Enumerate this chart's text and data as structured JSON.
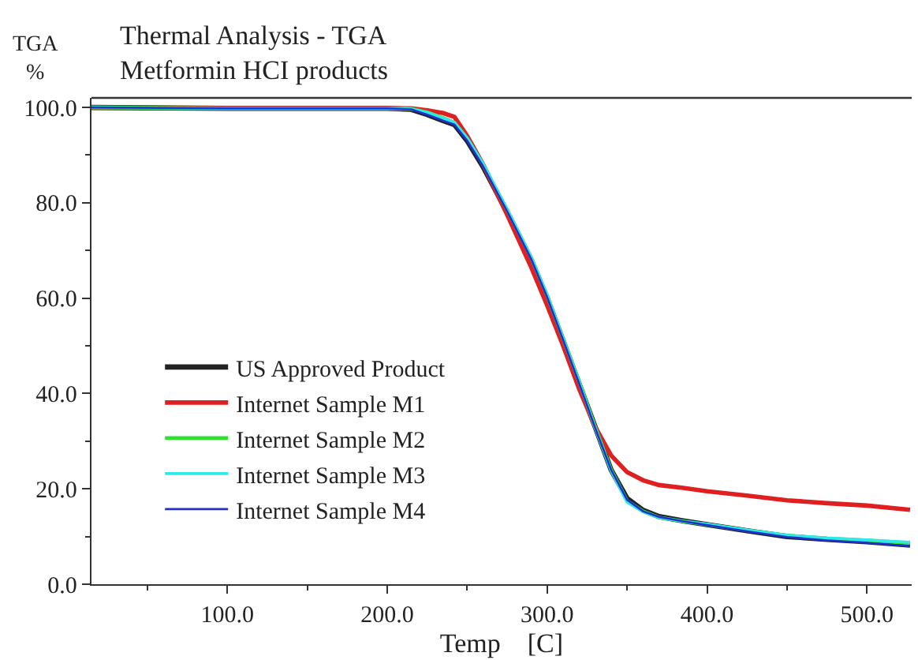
{
  "chart_data": {
    "type": "line",
    "title": "Thermal Analysis - TGA",
    "subtitle": "Metformin HCI products",
    "xlabel": "Temp    [C]",
    "ylabel": "TGA\n%",
    "x": [
      15,
      100,
      200,
      215,
      225,
      235,
      242,
      250,
      260,
      275,
      290,
      300,
      310,
      320,
      330,
      340,
      350,
      360,
      370,
      385,
      400,
      425,
      450,
      475,
      500,
      527
    ],
    "xlim": [
      15,
      528
    ],
    "ylim": [
      0,
      102
    ],
    "xticks": [
      {
        "value": 100,
        "label": "100.0"
      },
      {
        "value": 200,
        "label": "200.0"
      },
      {
        "value": 300,
        "label": "300.0"
      },
      {
        "value": 400,
        "label": "400.0"
      },
      {
        "value": 500,
        "label": "500.0"
      }
    ],
    "yticks": [
      {
        "value": 0,
        "label": "0.0"
      },
      {
        "value": 20,
        "label": "20.0"
      },
      {
        "value": 40,
        "label": "40.0"
      },
      {
        "value": 60,
        "label": "60.0"
      },
      {
        "value": 80,
        "label": "80.0"
      },
      {
        "value": 100,
        "label": "100.0"
      }
    ],
    "series": [
      {
        "name": "US Approved Product",
        "color": "#222222",
        "values": [
          100,
          99.8,
          99.8,
          99.6,
          98.5,
          97.2,
          96.4,
          93,
          87.5,
          78,
          68,
          60,
          51,
          42,
          33,
          24,
          18,
          15.5,
          14.2,
          13.3,
          12.5,
          11.2,
          10,
          9.4,
          8.9,
          8.2
        ]
      },
      {
        "name": "Internet Sample M1",
        "color": "#e02020",
        "values": [
          100,
          99.8,
          99.8,
          99.8,
          99.4,
          98.8,
          98,
          94,
          88,
          77.5,
          66.5,
          58.5,
          50,
          41,
          33,
          27,
          23.5,
          21.8,
          20.8,
          20.2,
          19.5,
          18.6,
          17.6,
          17,
          16.5,
          15.6
        ]
      },
      {
        "name": "Internet Sample M2",
        "color": "#30e030",
        "values": [
          100,
          99.8,
          99.8,
          99.7,
          99,
          97.8,
          96.8,
          93.5,
          88,
          78.5,
          68.5,
          60.5,
          51.5,
          42.5,
          33,
          24,
          17.5,
          15.3,
          14,
          13.2,
          12.5,
          11.3,
          10.2,
          9.6,
          9.2,
          8.6
        ]
      },
      {
        "name": "Internet Sample M3",
        "color": "#30e8e8",
        "values": [
          100,
          99.8,
          99.8,
          99.7,
          99,
          97.8,
          96.9,
          93.6,
          88.2,
          78.6,
          68.6,
          60.6,
          51.5,
          42.4,
          32.8,
          23.8,
          17.2,
          15.2,
          14,
          13.2,
          12.6,
          11.4,
          10.3,
          9.7,
          9.3,
          8.8
        ]
      },
      {
        "name": "Internet Sample M4",
        "color": "#2030d0",
        "values": [
          100,
          99.8,
          99.8,
          99.6,
          98.5,
          97.2,
          96.4,
          93,
          87.6,
          78.2,
          68.2,
          60.2,
          51.2,
          42.1,
          32.8,
          24,
          17.7,
          15.3,
          14.1,
          13.2,
          12.4,
          11.1,
          9.9,
          9.2,
          8.7,
          8
        ]
      }
    ],
    "legend": "bottom left",
    "marker": "none",
    "line_style": "solid"
  }
}
